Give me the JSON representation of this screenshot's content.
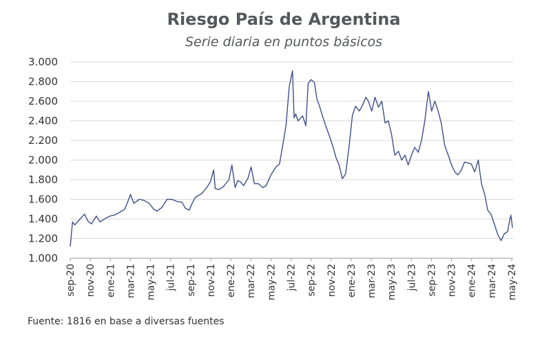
{
  "chart_data": {
    "type": "line",
    "title": "Riesgo País de Argentina",
    "subtitle": "Serie diaria en puntos básicos",
    "xlabel": "",
    "ylabel": "",
    "ylim": [
      1000,
      3000
    ],
    "y_ticks": [
      "1.000",
      "1.200",
      "1.400",
      "1.600",
      "1.800",
      "2.000",
      "2.200",
      "2.400",
      "2.600",
      "2.800",
      "3.000"
    ],
    "x_ticks": [
      "sep-20",
      "nov-20",
      "ene-21",
      "mar-21",
      "may-21",
      "jul-21",
      "sep-21",
      "nov-21",
      "ene-22",
      "mar-22",
      "may-22",
      "jul-22",
      "sep-22",
      "nov-22",
      "ene-23",
      "mar-23",
      "may-23",
      "jul-23",
      "sep-23",
      "nov-23",
      "ene-24",
      "mar-24",
      "may-24"
    ],
    "grid": true,
    "line_color": "#3d4f8a",
    "series": [
      {
        "x": [
          "2020-09-01",
          "2020-09-08",
          "2020-09-15",
          "2020-10-01",
          "2020-10-15",
          "2020-10-25",
          "2020-11-05",
          "2020-11-20",
          "2020-12-01",
          "2020-12-15",
          "2021-01-01",
          "2021-01-15",
          "2021-02-01",
          "2021-02-15",
          "2021-02-25",
          "2021-03-05",
          "2021-03-15",
          "2021-04-01",
          "2021-04-15",
          "2021-05-01",
          "2021-05-15",
          "2021-05-25",
          "2021-06-10",
          "2021-06-25",
          "2021-07-10",
          "2021-07-25",
          "2021-08-10",
          "2021-08-20",
          "2021-09-01",
          "2021-09-10",
          "2021-09-20",
          "2021-10-10",
          "2021-10-25",
          "2021-11-05",
          "2021-11-15",
          "2021-11-20",
          "2021-12-01",
          "2021-12-15",
          "2022-01-01",
          "2022-01-10",
          "2022-01-20",
          "2022-01-28",
          "2022-02-05",
          "2022-02-15",
          "2022-03-01",
          "2022-03-10",
          "2022-03-20",
          "2022-04-01",
          "2022-04-15",
          "2022-04-25",
          "2022-05-10",
          "2022-05-25",
          "2022-06-05",
          "2022-06-15",
          "2022-06-25",
          "2022-07-05",
          "2022-07-15",
          "2022-07-20",
          "2022-07-25",
          "2022-08-01",
          "2022-08-15",
          "2022-08-25",
          "2022-09-01",
          "2022-09-10",
          "2022-09-20",
          "2022-09-28",
          "2022-10-05",
          "2022-10-15",
          "2022-10-25",
          "2022-11-05",
          "2022-11-15",
          "2022-11-25",
          "2022-12-05",
          "2022-12-15",
          "2022-12-25",
          "2023-01-05",
          "2023-01-15",
          "2023-01-25",
          "2023-02-05",
          "2023-02-15",
          "2023-02-25",
          "2023-03-05",
          "2023-03-15",
          "2023-03-25",
          "2023-04-05",
          "2023-04-15",
          "2023-04-25",
          "2023-05-05",
          "2023-05-15",
          "2023-05-25",
          "2023-06-05",
          "2023-06-15",
          "2023-06-25",
          "2023-07-05",
          "2023-07-15",
          "2023-07-25",
          "2023-08-05",
          "2023-08-15",
          "2023-08-25",
          "2023-09-05",
          "2023-09-15",
          "2023-09-25",
          "2023-10-05",
          "2023-10-15",
          "2023-10-25",
          "2023-11-05",
          "2023-11-15",
          "2023-11-25",
          "2023-12-05",
          "2023-12-15",
          "2023-12-25",
          "2024-01-05",
          "2024-01-15",
          "2024-01-25",
          "2024-02-05",
          "2024-02-15",
          "2024-02-25",
          "2024-03-05",
          "2024-03-15",
          "2024-03-25",
          "2024-04-05",
          "2024-04-15",
          "2024-04-25",
          "2024-05-05",
          "2024-05-10",
          "2024-05-15",
          "2024-05-20"
        ],
        "values": [
          1120,
          1370,
          1340,
          1400,
          1450,
          1380,
          1350,
          1430,
          1370,
          1400,
          1430,
          1440,
          1470,
          1500,
          1580,
          1650,
          1560,
          1600,
          1590,
          1560,
          1500,
          1480,
          1520,
          1600,
          1600,
          1580,
          1570,
          1510,
          1490,
          1560,
          1620,
          1660,
          1720,
          1780,
          1900,
          1710,
          1700,
          1730,
          1800,
          1950,
          1720,
          1790,
          1780,
          1740,
          1820,
          1930,
          1760,
          1760,
          1720,
          1740,
          1850,
          1930,
          1960,
          2150,
          2350,
          2750,
          2910,
          2430,
          2470,
          2400,
          2450,
          2350,
          2780,
          2820,
          2790,
          2620,
          2560,
          2450,
          2350,
          2250,
          2150,
          2030,
          1950,
          1810,
          1860,
          2150,
          2460,
          2550,
          2500,
          2560,
          2640,
          2600,
          2500,
          2640,
          2540,
          2600,
          2380,
          2400,
          2260,
          2050,
          2090,
          2000,
          2050,
          1950,
          2050,
          2130,
          2080,
          2200,
          2400,
          2700,
          2500,
          2600,
          2500,
          2370,
          2150,
          2050,
          1950,
          1880,
          1850,
          1900,
          1980,
          1970,
          1960,
          1880,
          2000,
          1760,
          1650,
          1490,
          1450,
          1350,
          1240,
          1180,
          1250,
          1270,
          1360,
          1440,
          1310
        ]
      }
    ],
    "source": "Fuente: 1816  en base a diversas fuentes"
  }
}
